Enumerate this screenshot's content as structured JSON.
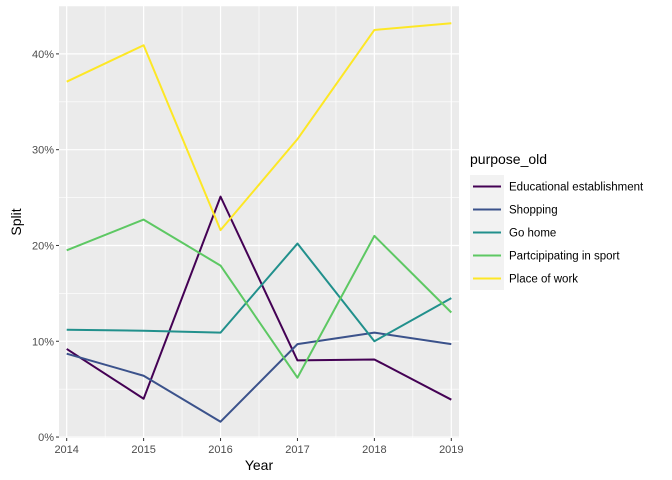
{
  "chart_data": {
    "type": "line",
    "xlabel": "Year",
    "ylabel": "Split",
    "x": [
      2014,
      2015,
      2016,
      2017,
      2018,
      2019
    ],
    "x_tick_labels": [
      "2014",
      "2015",
      "2016",
      "2017",
      "2018",
      "2019"
    ],
    "xlim": [
      2013.9,
      2019.1
    ],
    "ylim": [
      -0.001,
      0.45
    ],
    "y_ticks": [
      0,
      0.1,
      0.2,
      0.3,
      0.4
    ],
    "y_tick_labels": [
      "0%",
      "10%",
      "20%",
      "30%",
      "40%"
    ],
    "grid": true,
    "legend_title": "purpose_old",
    "legend_position": "right",
    "series": [
      {
        "name": "Educational establishment",
        "color": "#440154",
        "values": [
          0.092,
          0.04,
          0.251,
          0.08,
          0.081,
          0.039
        ]
      },
      {
        "name": "Shopping",
        "color": "#3B528B",
        "values": [
          0.087,
          0.064,
          0.016,
          0.097,
          0.109,
          0.097
        ]
      },
      {
        "name": "Go home",
        "color": "#21908C",
        "values": [
          0.112,
          0.111,
          0.109,
          0.202,
          0.1,
          0.145
        ]
      },
      {
        "name": "Partcipipating in sport",
        "color": "#5DC863",
        "values": [
          0.195,
          0.227,
          0.179,
          0.062,
          0.21,
          0.13
        ]
      },
      {
        "name": "Place of work",
        "color": "#FDE725",
        "values": [
          0.371,
          0.409,
          0.216,
          0.311,
          0.425,
          0.432
        ]
      }
    ]
  }
}
